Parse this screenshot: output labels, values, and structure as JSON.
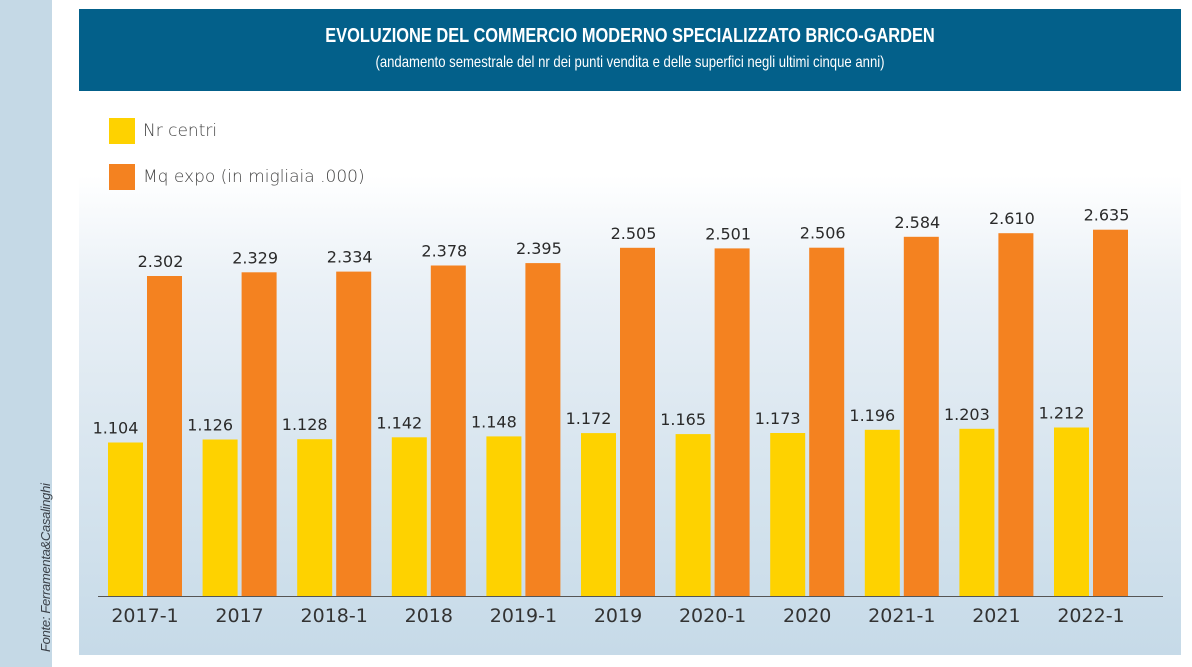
{
  "header": {
    "title": "EVOLUZIONE DEL COMMERCIO MODERNO SPECIALIZZATO BRICO-GARDEN",
    "subtitle": "(andamento semestrale del nr dei punti vendita e delle superfici negli ultimi cinque anni)"
  },
  "source": "Fonte: Ferramenta&Casalinghi",
  "colors": {
    "header_bg": "#03608a",
    "nr_centri": "#fed200",
    "mq_expo": "#f48220",
    "sidebar": "#c5d9e6"
  },
  "chart_data": {
    "type": "bar",
    "title": "EVOLUZIONE DEL COMMERCIO MODERNO SPECIALIZZATO BRICO-GARDEN",
    "subtitle": "(andamento semestrale del nr dei punti vendita e delle superfici negli ultimi cinque anni)",
    "xlabel": "",
    "ylabel": "",
    "ylim": [
      0,
      2.8
    ],
    "grid": false,
    "legend_position": "top-left",
    "categories": [
      "2017-1",
      "2017",
      "2018-1",
      "2018",
      "2019-1",
      "2019",
      "2020-1",
      "2020",
      "2021-1",
      "2021",
      "2022-1"
    ],
    "series": [
      {
        "name": "Nr centri",
        "color": "#fed200",
        "values": [
          1.104,
          1.126,
          1.128,
          1.142,
          1.148,
          1.172,
          1.165,
          1.173,
          1.196,
          1.203,
          1.212
        ],
        "labels": [
          "1.104",
          "1.126",
          "1.128",
          "1.142",
          "1.148",
          "1.172",
          "1.165",
          "1.173",
          "1.196",
          "1.203",
          "1.212"
        ]
      },
      {
        "name": "Mq expo (in migliaia .000)",
        "color": "#f48220",
        "values": [
          2.302,
          2.329,
          2.334,
          2.378,
          2.395,
          2.505,
          2.501,
          2.506,
          2.584,
          2.61,
          2.635
        ],
        "labels": [
          "2.302",
          "2.329",
          "2.334",
          "2.378",
          "2.395",
          "2.505",
          "2.501",
          "2.506",
          "2.584",
          "2.610",
          "2.635"
        ]
      }
    ]
  }
}
